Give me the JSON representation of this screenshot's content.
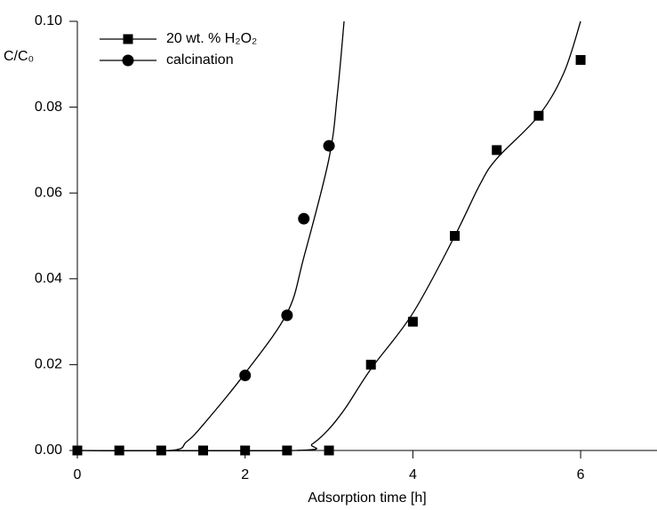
{
  "chart_data": {
    "type": "scatter",
    "x_label": "Adsorption time [h]",
    "y_label": "C/C₀",
    "xlim": [
      0,
      6.9
    ],
    "ylim": [
      0,
      0.1
    ],
    "xticks": [
      0,
      2,
      4,
      6
    ],
    "yticks": [
      {
        "value": 0,
        "label": "0.00"
      },
      0.02,
      0.04,
      0.06,
      0.08,
      {
        "value": 0.1,
        "label": "0.10"
      }
    ],
    "legend": "upper left",
    "series": [
      {
        "name": "20 wt. %  H₂O₂",
        "marker": "square",
        "color": "#000000",
        "x": [
          0,
          0.5,
          1,
          1.5,
          2,
          2.5,
          3,
          3.5,
          4,
          4.5,
          5,
          5.5,
          6
        ],
        "values": [
          0,
          0,
          0,
          0,
          0,
          0,
          0,
          0.02,
          0.03,
          0.05,
          0.07,
          0.078,
          0.091
        ],
        "fit_x": [
          0,
          2.6,
          2.8,
          3.0,
          3.2,
          3.5,
          4.0,
          4.5,
          4.8,
          5.0,
          5.5,
          5.8,
          6.0
        ],
        "fit_values": [
          0,
          0,
          0.0015,
          0.005,
          0.01,
          0.019,
          0.032,
          0.05,
          0.062,
          0.068,
          0.078,
          0.088,
          0.1
        ]
      },
      {
        "name": "calcination",
        "marker": "circle",
        "color": "#000000",
        "x": [
          2,
          2.5,
          2.7,
          3
        ],
        "values": [
          0.0175,
          0.0315,
          0.054,
          0.071
        ],
        "fit_x": [
          0,
          1.1,
          1.3,
          1.5,
          2.0,
          2.5,
          2.7,
          3.0,
          3.1,
          3.18
        ],
        "fit_values": [
          0,
          0,
          0.002,
          0.006,
          0.018,
          0.032,
          0.045,
          0.068,
          0.083,
          0.1
        ]
      }
    ]
  }
}
